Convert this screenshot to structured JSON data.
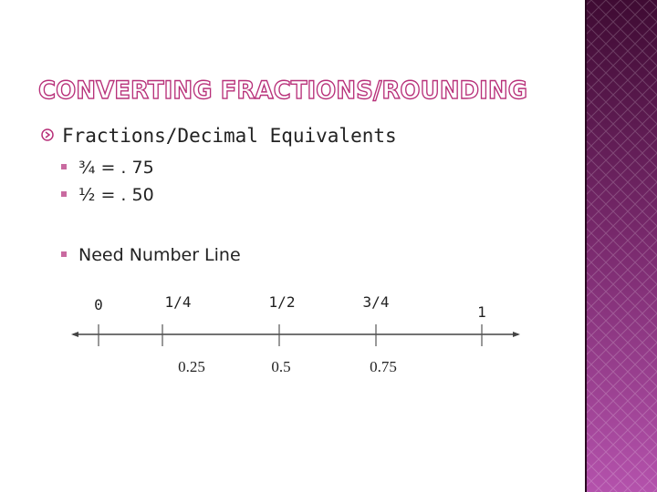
{
  "title": "CONVERTING FRACTIONS/ROUNDING",
  "bullets": [
    {
      "text": "Fractions/Decimal Equivalents",
      "items": [
        "¾ = . 75",
        "½ = . 50",
        "Need Number Line"
      ]
    }
  ],
  "number_line": {
    "fractions": [
      "0",
      "1/4",
      "1/2",
      "3/4",
      "1"
    ],
    "decimals": [
      "0.25",
      "0.5",
      "0.75"
    ]
  }
}
